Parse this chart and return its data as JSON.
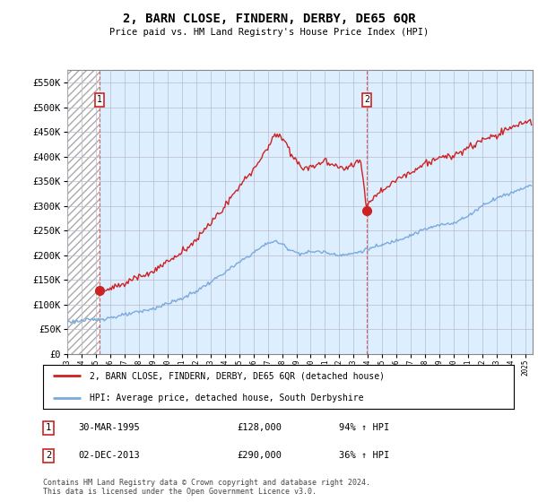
{
  "title": "2, BARN CLOSE, FINDERN, DERBY, DE65 6QR",
  "subtitle": "Price paid vs. HM Land Registry's House Price Index (HPI)",
  "ylim": [
    0,
    575000
  ],
  "yticks": [
    0,
    50000,
    100000,
    150000,
    200000,
    250000,
    300000,
    350000,
    400000,
    450000,
    500000,
    550000
  ],
  "ytick_labels": [
    "£0",
    "£50K",
    "£100K",
    "£150K",
    "£200K",
    "£250K",
    "£300K",
    "£350K",
    "£400K",
    "£450K",
    "£500K",
    "£550K"
  ],
  "sale1_date_num": 1995.25,
  "sale1_price": 128000,
  "sale1_label": "30-MAR-1995",
  "sale1_amount": "£128,000",
  "sale1_hpi": "94% ↑ HPI",
  "sale2_date_num": 2013.92,
  "sale2_price": 290000,
  "sale2_label": "02-DEC-2013",
  "sale2_amount": "£290,000",
  "sale2_hpi": "36% ↑ HPI",
  "red_line_color": "#cc2222",
  "blue_line_color": "#7aaadd",
  "grid_color": "#bbbbcc",
  "bg_color": "#ddeeff",
  "legend_label_red": "2, BARN CLOSE, FINDERN, DERBY, DE65 6QR (detached house)",
  "legend_label_blue": "HPI: Average price, detached house, South Derbyshire",
  "footer": "Contains HM Land Registry data © Crown copyright and database right 2024.\nThis data is licensed under the Open Government Licence v3.0.",
  "xmin": 1993.0,
  "xmax": 2025.5
}
